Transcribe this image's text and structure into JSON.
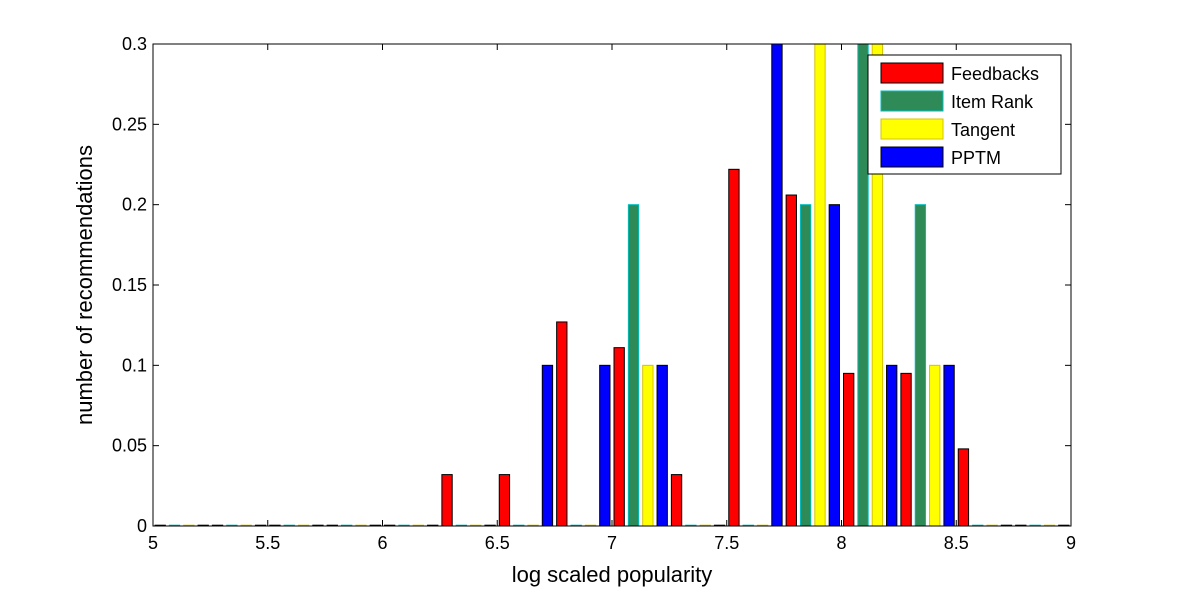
{
  "chart_data": {
    "type": "bar",
    "title": "",
    "xlabel": "log scaled popularity",
    "ylabel": "number of recommendations",
    "xlim": [
      5,
      9
    ],
    "ylim": [
      0,
      0.3
    ],
    "x_ticks": [
      "5",
      "5.5",
      "6",
      "6.5",
      "7",
      "7.5",
      "8",
      "8.5",
      "9"
    ],
    "y_ticks": [
      "0",
      "0.05",
      "0.1",
      "0.15",
      "0.2",
      "0.25",
      "0.3"
    ],
    "grid": false,
    "legend_position": "top-right",
    "bin_centers": [
      5.125,
      5.375,
      5.625,
      5.875,
      6.125,
      6.375,
      6.625,
      6.875,
      7.125,
      7.375,
      7.625,
      7.875,
      8.125,
      8.375,
      8.625,
      8.875
    ],
    "series": [
      {
        "name": "Feedbacks",
        "color": "#ff0000",
        "edge": "#000000",
        "values": [
          0,
          0,
          0,
          0,
          0,
          0.032,
          0.032,
          0.127,
          0.111,
          0.032,
          0.222,
          0.206,
          0.095,
          0.095,
          0.048,
          0
        ]
      },
      {
        "name": "Item Rank",
        "color": "#2e8b57",
        "edge": "#00bcbc",
        "values": [
          0,
          0,
          0,
          0,
          0,
          0,
          0,
          0,
          0.2,
          0,
          0,
          0.2,
          0.3,
          0.2,
          0,
          0
        ]
      },
      {
        "name": "Tangent",
        "color": "#ffff00",
        "edge": "#d4c400",
        "values": [
          0,
          0,
          0,
          0,
          0,
          0,
          0,
          0,
          0.1,
          0,
          0,
          0.3,
          0.3,
          0.1,
          0,
          0
        ]
      },
      {
        "name": "PPTM",
        "color": "#0000ff",
        "edge": "#000000",
        "values": [
          0,
          0,
          0,
          0,
          0,
          0,
          0.1,
          0.1,
          0.1,
          0,
          0.3,
          0.2,
          0.1,
          0.1,
          0,
          0
        ]
      }
    ]
  }
}
